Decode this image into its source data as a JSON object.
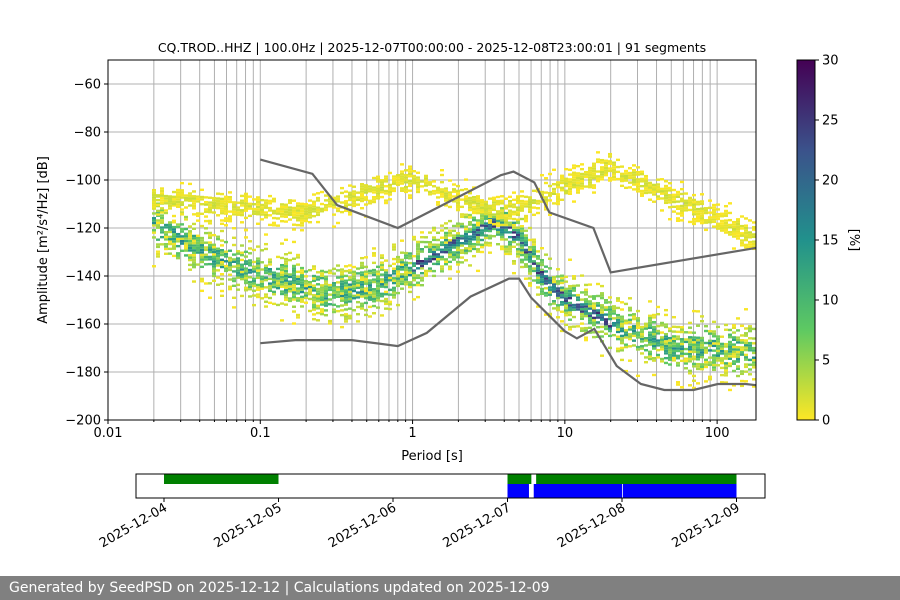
{
  "chart_data": {
    "type": "heatmap",
    "title": "CQ.TROD..HHZ | 100.0Hz | 2025-12-07T00:00:00 - 2025-12-08T23:00:01 | 91 segments",
    "xlabel": "Period [s]",
    "ylabel": "Amplitude [m²/s⁴/Hz] [dB]",
    "xscale": "log",
    "xlim": [
      0.01,
      180
    ],
    "ylim": [
      -200,
      -50
    ],
    "xticks": [
      "0.01",
      "0.1",
      "1",
      "10",
      "100"
    ],
    "yticks": [
      -60,
      -80,
      -100,
      -120,
      -140,
      -160,
      -180,
      -200
    ],
    "grid": true,
    "colorbar": {
      "label": "[%]",
      "range": [
        0,
        30
      ],
      "ticks": [
        0,
        5,
        10,
        15,
        20,
        25,
        30
      ],
      "colormap": "viridis_r"
    },
    "noise_models": {
      "high": [
        [
          0.1,
          -91.5
        ],
        [
          0.22,
          -97.4
        ],
        [
          0.32,
          -110.5
        ],
        [
          0.8,
          -120
        ],
        [
          3.8,
          -98
        ],
        [
          4.6,
          -96.5
        ],
        [
          6.3,
          -101
        ],
        [
          7.9,
          -113.5
        ],
        [
          15.4,
          -120
        ],
        [
          20,
          -138.5
        ],
        [
          180,
          -128.3
        ]
      ],
      "low": [
        [
          0.1,
          -168
        ],
        [
          0.17,
          -166.7
        ],
        [
          0.4,
          -166.7
        ],
        [
          0.8,
          -169.2
        ],
        [
          1.24,
          -163.7
        ],
        [
          2.4,
          -148.6
        ],
        [
          4.3,
          -141.1
        ],
        [
          5,
          -141.1
        ],
        [
          6,
          -149
        ],
        [
          10,
          -163
        ],
        [
          12,
          -166
        ],
        [
          15.6,
          -162
        ],
        [
          21.9,
          -177.5
        ],
        [
          31.6,
          -185
        ],
        [
          45,
          -187.5
        ],
        [
          70,
          -187.5
        ],
        [
          101,
          -185
        ],
        [
          154,
          -185
        ],
        [
          180,
          -185.5
        ]
      ],
      "color": "#666666"
    },
    "density_bands": [
      {
        "points": [
          [
            0.019,
            -118
          ],
          [
            0.05,
            -133
          ],
          [
            0.1,
            -140
          ],
          [
            0.3,
            -148
          ],
          [
            0.6,
            -144
          ],
          [
            1,
            -137
          ],
          [
            2,
            -126
          ],
          [
            3.5,
            -118
          ],
          [
            5,
            -124
          ],
          [
            7,
            -140
          ],
          [
            10,
            -150
          ],
          [
            20,
            -160
          ],
          [
            50,
            -170
          ],
          [
            180,
            -172
          ]
        ],
        "spread": 11,
        "peak_pct": 12
      },
      {
        "points": [
          [
            0.019,
            -108
          ],
          [
            0.2,
            -114
          ],
          [
            1,
            -100
          ],
          [
            4,
            -115
          ],
          [
            20,
            -95
          ],
          [
            180,
            -125
          ]
        ],
        "spread": 6,
        "peak_pct": 2
      }
    ],
    "availability": {
      "xticks": [
        "2025-12-04",
        "2025-12-05",
        "2025-12-06",
        "2025-12-07",
        "2025-12-08",
        "2025-12-09"
      ],
      "data_available": [
        [
          "2025-12-04T00:00",
          "2025-12-05T00:00"
        ],
        [
          "2025-12-07T00:00",
          "2025-12-07T05:00"
        ],
        [
          "2025-12-07T06:00",
          "2025-12-09T00:00"
        ]
      ],
      "segments_used": [
        [
          "2025-12-07T00:00",
          "2025-12-07T04:30"
        ],
        [
          "2025-12-07T05:30",
          "2025-12-08T00:00"
        ],
        [
          "2025-12-08T00:10",
          "2025-12-09T00:00"
        ]
      ],
      "available_color": "#008000",
      "used_color": "#0000ff"
    }
  },
  "footer": "Generated by SeedPSD on 2025-12-12 | Calculations updated on 2025-12-09"
}
